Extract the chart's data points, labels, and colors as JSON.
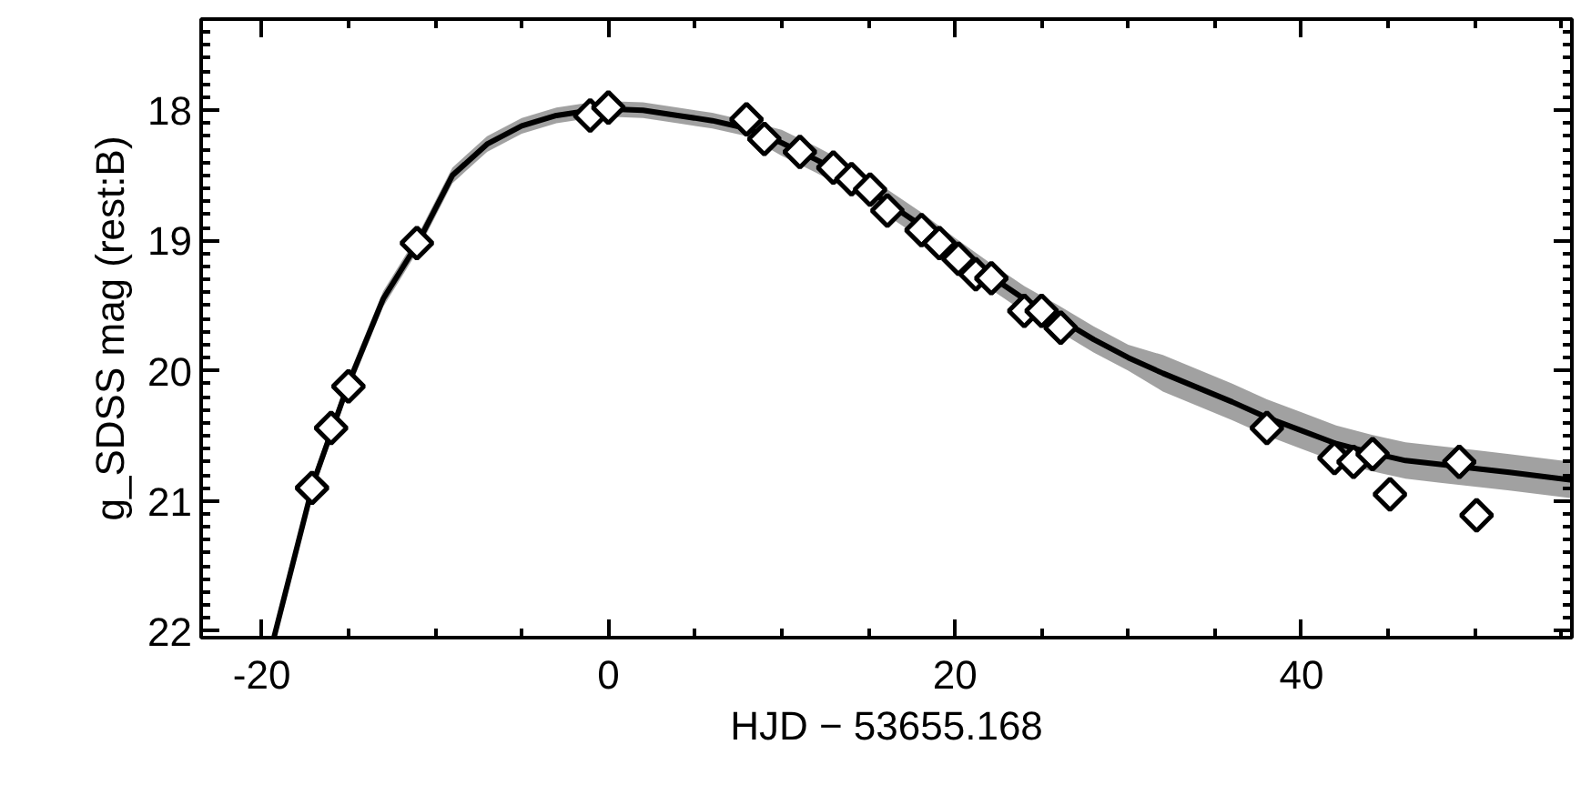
{
  "chart_data": {
    "type": "scatter",
    "xlabel": "HJD − 53655.168",
    "ylabel": "g_SDSS mag (rest:B)",
    "xlim": [
      -23.5,
      55.6
    ],
    "ylim": [
      22.05,
      17.3
    ],
    "xticks": [
      -20,
      {
        "value": -15,
        "label": null
      },
      {
        "value": -10,
        "label": null
      },
      {
        "value": -5,
        "label": null
      },
      0,
      {
        "value": 5,
        "label": null
      },
      {
        "value": 10,
        "label": null
      },
      {
        "value": 15,
        "label": null
      },
      20,
      {
        "value": 25,
        "label": null
      },
      {
        "value": 30,
        "label": null
      },
      {
        "value": 35,
        "label": null
      },
      40,
      {
        "value": 45,
        "label": null
      },
      {
        "value": 50,
        "label": null
      },
      {
        "value": 55,
        "label": null
      }
    ],
    "yticks": [
      {
        "value": 17.4,
        "label": null
      },
      {
        "value": 17.5,
        "label": null
      },
      {
        "value": 17.6,
        "label": null
      },
      {
        "value": 17.7,
        "label": null
      },
      {
        "value": 17.8,
        "label": null
      },
      {
        "value": 17.9,
        "label": null
      },
      18,
      {
        "value": 18.1,
        "label": null
      },
      {
        "value": 18.2,
        "label": null
      },
      {
        "value": 18.3,
        "label": null
      },
      {
        "value": 18.4,
        "label": null
      },
      {
        "value": 18.5,
        "label": null
      },
      {
        "value": 18.6,
        "label": null
      },
      {
        "value": 18.7,
        "label": null
      },
      {
        "value": 18.8,
        "label": null
      },
      {
        "value": 18.9,
        "label": null
      },
      19,
      {
        "value": 19.1,
        "label": null
      },
      {
        "value": 19.2,
        "label": null
      },
      {
        "value": 19.3,
        "label": null
      },
      {
        "value": 19.4,
        "label": null
      },
      {
        "value": 19.5,
        "label": null
      },
      {
        "value": 19.6,
        "label": null
      },
      {
        "value": 19.7,
        "label": null
      },
      {
        "value": 19.8,
        "label": null
      },
      {
        "value": 19.9,
        "label": null
      },
      20,
      {
        "value": 20.1,
        "label": null
      },
      {
        "value": 20.2,
        "label": null
      },
      {
        "value": 20.3,
        "label": null
      },
      {
        "value": 20.4,
        "label": null
      },
      {
        "value": 20.5,
        "label": null
      },
      {
        "value": 20.6,
        "label": null
      },
      {
        "value": 20.7,
        "label": null
      },
      {
        "value": 20.8,
        "label": null
      },
      {
        "value": 20.9,
        "label": null
      },
      21,
      {
        "value": 21.1,
        "label": null
      },
      {
        "value": 21.2,
        "label": null
      },
      {
        "value": 21.3,
        "label": null
      },
      {
        "value": 21.4,
        "label": null
      },
      {
        "value": 21.5,
        "label": null
      },
      {
        "value": 21.6,
        "label": null
      },
      {
        "value": 21.7,
        "label": null
      },
      {
        "value": 21.8,
        "label": null
      },
      {
        "value": 21.9,
        "label": null
      },
      22
    ],
    "grid": false,
    "marker": "diamond",
    "series": [
      {
        "type": "line",
        "color": "#000000",
        "x": [
          -19.3,
          -17,
          -15,
          -13,
          -11,
          -9,
          -7,
          -5,
          -3,
          -1,
          0,
          2,
          4,
          6,
          8,
          10,
          12,
          14,
          16,
          18,
          20,
          22,
          24,
          26,
          28,
          30,
          32,
          34,
          36,
          38,
          40,
          42,
          44,
          46,
          48,
          50,
          52,
          55.6
        ],
        "values": [
          22.05,
          20.85,
          20.1,
          19.45,
          19.02,
          18.5,
          18.26,
          18.12,
          18.04,
          18.0,
          17.99,
          18.0,
          18.04,
          18.08,
          18.14,
          18.25,
          18.38,
          18.52,
          18.7,
          18.88,
          19.08,
          19.27,
          19.45,
          19.6,
          19.76,
          19.9,
          20.02,
          20.13,
          20.24,
          20.36,
          20.46,
          20.56,
          20.63,
          20.69,
          20.72,
          20.75,
          20.78,
          20.84
        ],
        "lower": [
          21.99,
          20.79,
          20.04,
          19.39,
          18.96,
          18.44,
          18.2,
          18.06,
          17.98,
          17.94,
          17.93,
          17.94,
          17.98,
          18.02,
          18.08,
          18.15,
          18.28,
          18.42,
          18.6,
          18.78,
          18.98,
          19.17,
          19.35,
          19.5,
          19.66,
          19.8,
          19.88,
          19.99,
          20.1,
          20.22,
          20.32,
          20.42,
          20.49,
          20.55,
          20.58,
          20.61,
          20.64,
          20.7
        ],
        "upper": [
          22.05,
          20.91,
          20.16,
          19.51,
          19.08,
          18.56,
          18.32,
          18.18,
          18.1,
          18.06,
          18.05,
          18.06,
          18.1,
          18.14,
          18.2,
          18.35,
          18.48,
          18.62,
          18.8,
          18.98,
          19.18,
          19.37,
          19.55,
          19.7,
          19.86,
          20.0,
          20.16,
          20.27,
          20.38,
          20.5,
          20.6,
          20.7,
          20.77,
          20.83,
          20.86,
          20.89,
          20.92,
          20.98
        ],
        "marker": "none"
      },
      {
        "color": "#000000",
        "x": [
          -17.1,
          -16.0,
          -15.0,
          -11.05,
          -1.05,
          0.0,
          7.97,
          9.0,
          11.05,
          12.98,
          14.03,
          15.1,
          16.1,
          18.07,
          19.1,
          20.2,
          21.2,
          22.1,
          24.0,
          25.0,
          26.1,
          38.0,
          41.9,
          43.0,
          44.1,
          45.1,
          49.1,
          50.1
        ],
        "values": [
          20.9,
          20.44,
          20.12,
          19.02,
          18.04,
          17.98,
          18.07,
          18.22,
          18.32,
          18.44,
          18.53,
          18.61,
          18.77,
          18.92,
          19.02,
          19.14,
          19.26,
          19.29,
          19.54,
          19.54,
          19.67,
          20.44,
          20.67,
          20.7,
          20.64,
          20.95,
          20.7,
          21.11
        ]
      }
    ]
  }
}
